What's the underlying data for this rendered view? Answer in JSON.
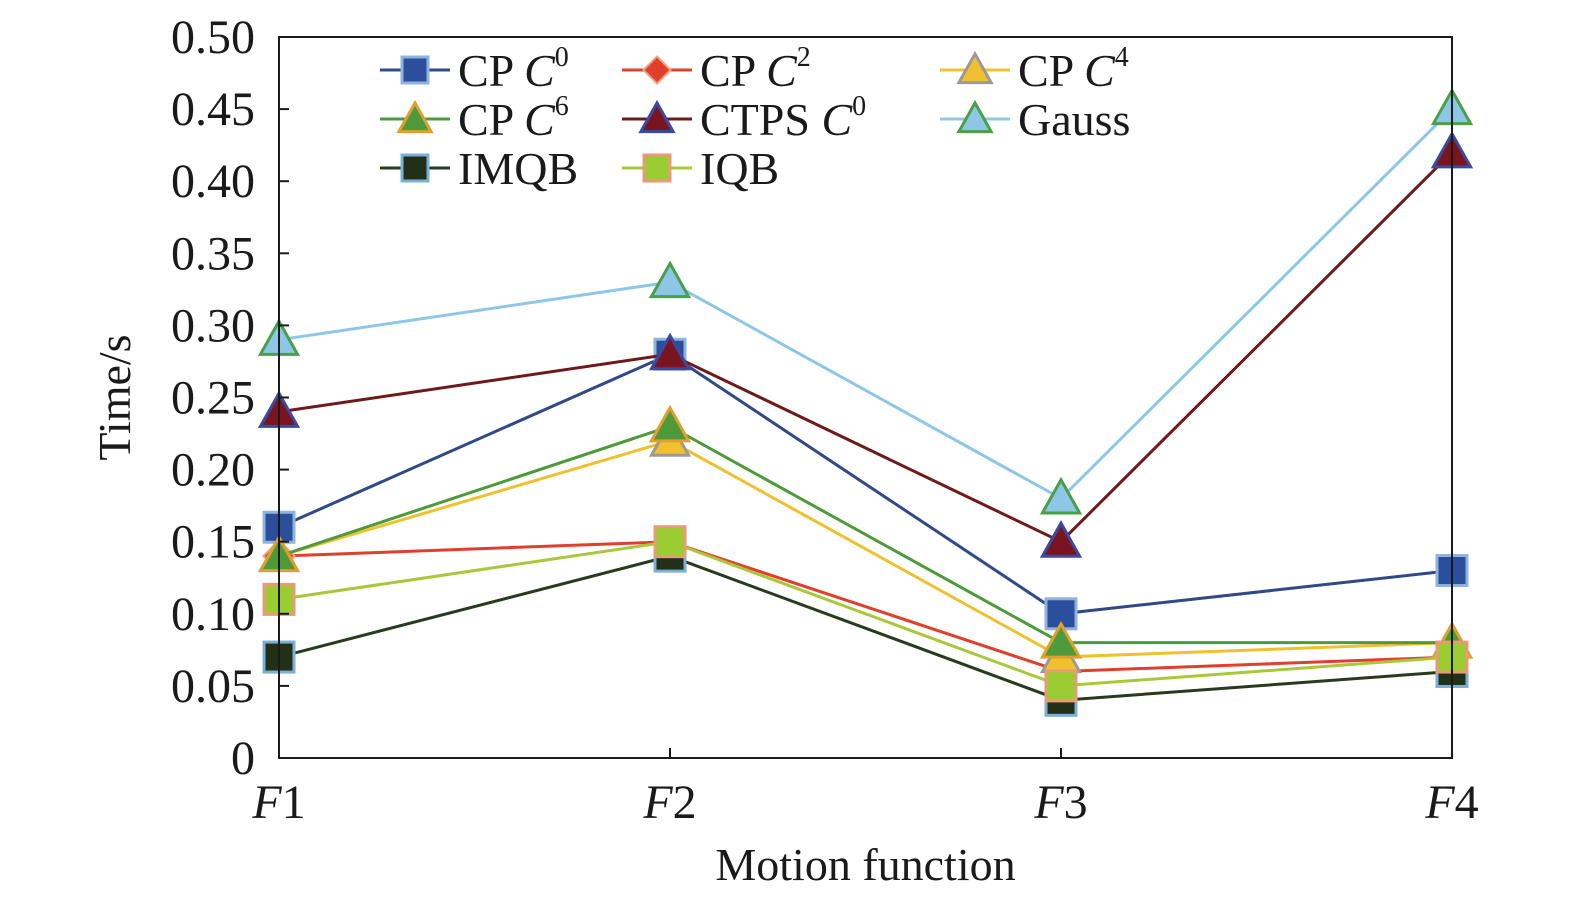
{
  "chart_data": {
    "type": "line",
    "title": "",
    "xlabel": "Motion function",
    "ylabel": "Time/s",
    "categories": [
      {
        "italic": "F",
        "num": "1"
      },
      {
        "italic": "F",
        "num": "2"
      },
      {
        "italic": "F",
        "num": "3"
      },
      {
        "italic": "F",
        "num": "4"
      }
    ],
    "ylim": [
      0,
      0.5
    ],
    "yticks": [
      "0",
      "0.05",
      "0.10",
      "0.15",
      "0.20",
      "0.25",
      "0.30",
      "0.35",
      "0.40",
      "0.45",
      "0.50"
    ],
    "series": [
      {
        "name": "CP C0",
        "label_parts": {
          "main": "CP ",
          "italic": "C",
          "sup": "0"
        },
        "marker": "square",
        "line_color": "#2f4a86",
        "fill": "#2b4f9c",
        "edge": "#8fb3dc",
        "values": [
          0.16,
          0.28,
          0.1,
          0.13
        ]
      },
      {
        "name": "CP C2",
        "label_parts": {
          "main": "CP ",
          "italic": "C",
          "sup": "2"
        },
        "marker": "diamond",
        "line_color": "#e0402b",
        "fill": "#e0402b",
        "edge": "#f1a07a",
        "values": [
          0.14,
          0.15,
          0.06,
          0.07
        ]
      },
      {
        "name": "CP C4",
        "label_parts": {
          "main": "CP ",
          "italic": "C",
          "sup": "4"
        },
        "marker": "triangle",
        "line_color": "#f0c02e",
        "fill": "#f0c02e",
        "edge": "#9a9a9a",
        "values": [
          0.14,
          0.22,
          0.07,
          0.08
        ]
      },
      {
        "name": "CP C6",
        "label_parts": {
          "main": "CP ",
          "italic": "C",
          "sup": "6"
        },
        "marker": "triangle",
        "line_color": "#4e9a3a",
        "fill": "#4e9a3a",
        "edge": "#e0a030",
        "values": [
          0.14,
          0.23,
          0.08,
          0.08
        ]
      },
      {
        "name": "CTPS C0",
        "label_parts": {
          "main": "CTPS ",
          "italic": "C",
          "sup": "0"
        },
        "marker": "triangle",
        "line_color": "#6e1a1a",
        "fill": "#7a1520",
        "edge": "#3a4aa0",
        "values": [
          0.24,
          0.28,
          0.15,
          0.42
        ]
      },
      {
        "name": "Gauss",
        "label_parts": {
          "main": "Gauss",
          "italic": "",
          "sup": ""
        },
        "marker": "triangle",
        "line_color": "#8ec6e8",
        "fill": "#8ec6e8",
        "edge": "#4aa04a",
        "values": [
          0.29,
          0.33,
          0.18,
          0.45
        ]
      },
      {
        "name": "IMQB",
        "label_parts": {
          "main": "IMQB",
          "italic": "",
          "sup": ""
        },
        "marker": "square",
        "line_color": "#2a3a1e",
        "fill": "#223018",
        "edge": "#7ab0d8",
        "values": [
          0.07,
          0.14,
          0.04,
          0.06
        ]
      },
      {
        "name": "IQB",
        "label_parts": {
          "main": "IQB",
          "italic": "",
          "sup": ""
        },
        "marker": "square",
        "line_color": "#a8c83a",
        "fill": "#9acd32",
        "edge": "#e89a7a",
        "values": [
          0.11,
          0.15,
          0.05,
          0.07
        ]
      }
    ]
  }
}
